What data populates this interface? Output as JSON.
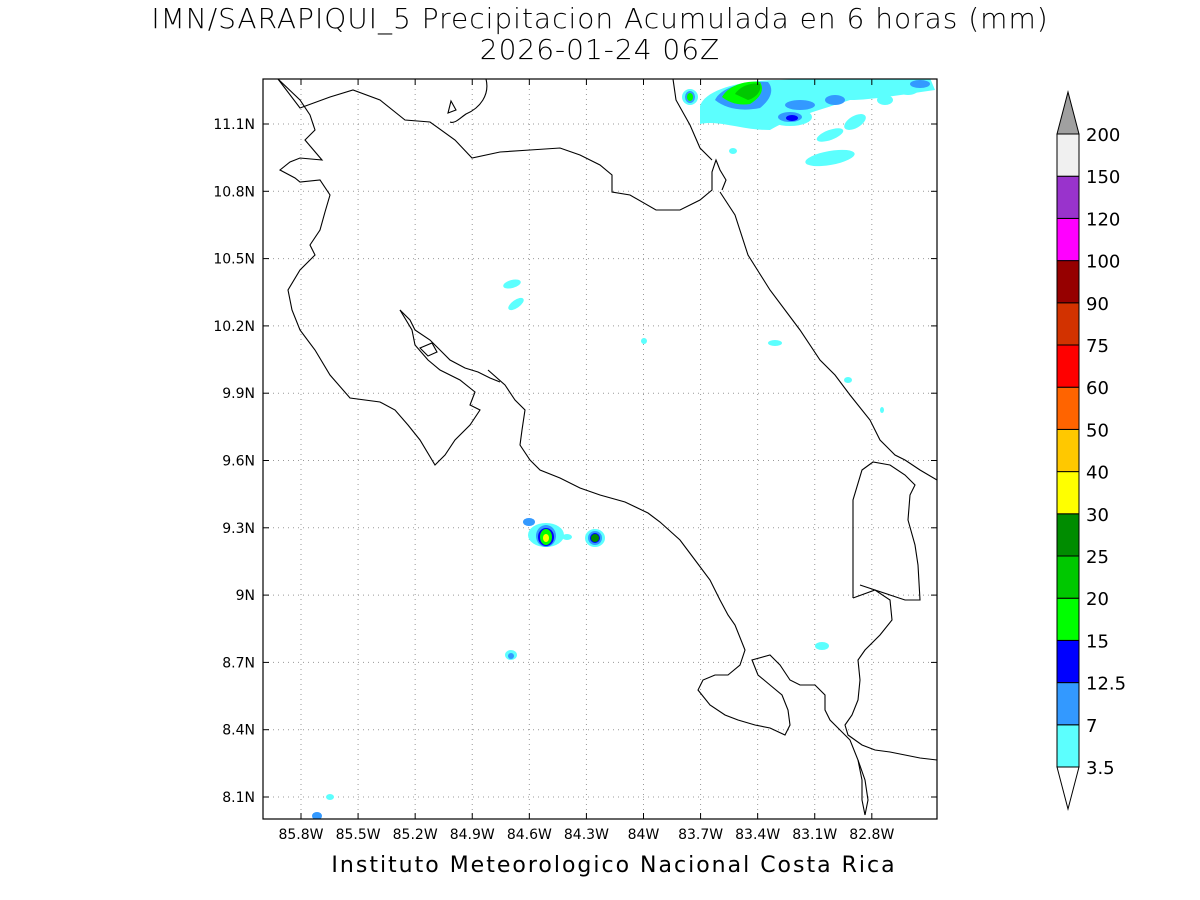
{
  "title": {
    "line1": "IMN/SARAPIQUI_5 Precipitacion Acumulada en 6 horas (mm)",
    "line2": "2026-01-24 06Z"
  },
  "footer": "Instituto Meteorologico Nacional Costa Rica",
  "map": {
    "lon_labels": [
      "85.8W",
      "85.5W",
      "85.2W",
      "84.9W",
      "84.6W",
      "84.3W",
      "84W",
      "83.7W",
      "83.4W",
      "83.1W",
      "82.8W"
    ],
    "lat_labels": [
      "11.1N",
      "10.8N",
      "10.5N",
      "10.2N",
      "9.9N",
      "9.6N",
      "9.3N",
      "9N",
      "8.7N",
      "8.4N",
      "8.1N"
    ],
    "grid": true,
    "variable": "Precipitacion Acumulada en 6 horas",
    "units": "mm"
  },
  "colorbar": {
    "labels": [
      "3.5",
      "7",
      "12.5",
      "15",
      "20",
      "25",
      "30",
      "40",
      "50",
      "60",
      "75",
      "90",
      "100",
      "120",
      "150",
      "200"
    ],
    "colors": [
      "#5cfffe",
      "#3399ff",
      "#0000ff",
      "#00ff00",
      "#00c800",
      "#008c00",
      "#ffff00",
      "#ffc800",
      "#ff6400",
      "#ff0000",
      "#d23200",
      "#960000",
      "#ff00ff",
      "#9933cc",
      "#f0f0f0",
      "#a0a0a0"
    ],
    "under_color": "#ffffff"
  }
}
